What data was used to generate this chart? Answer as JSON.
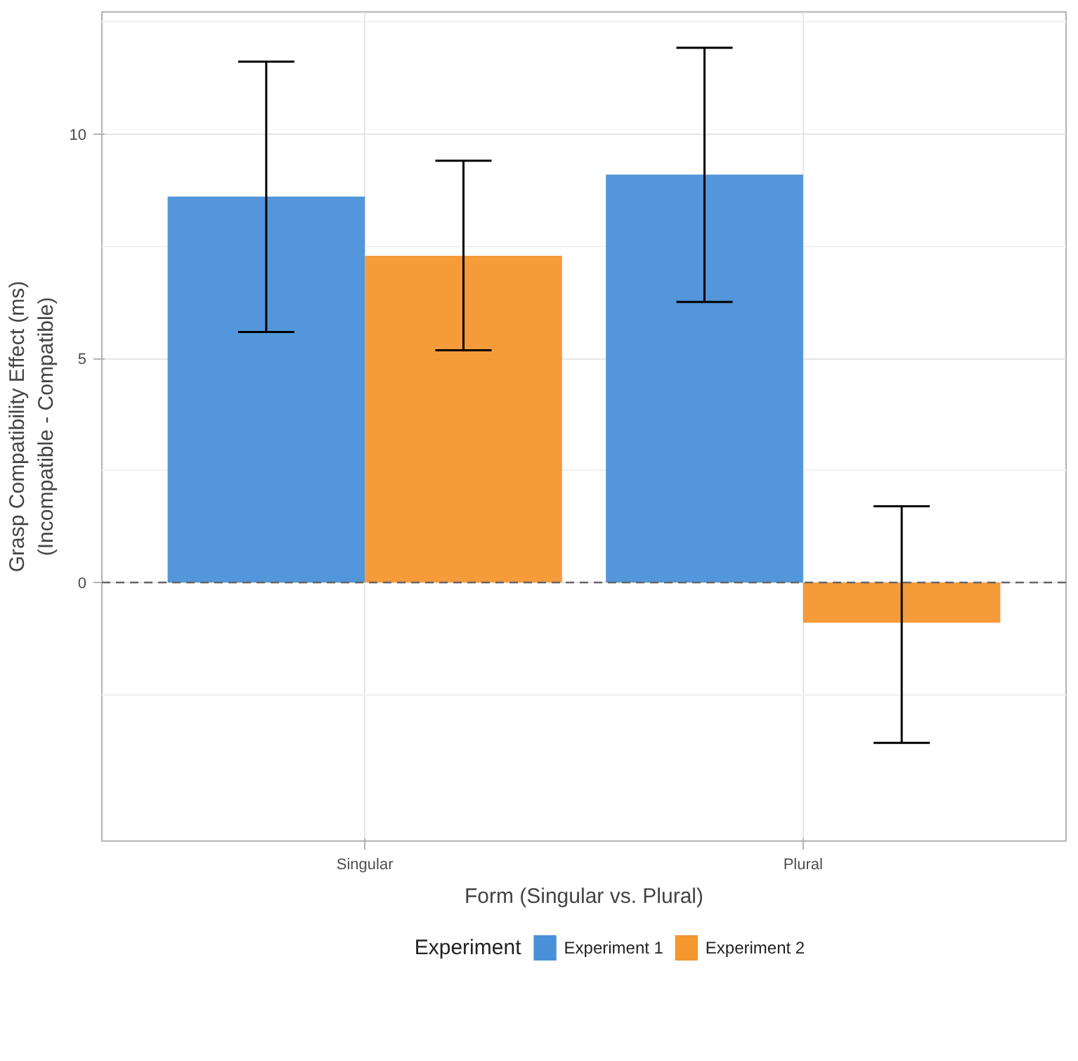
{
  "chart_data": {
    "type": "bar",
    "xlabel": "Form (Singular vs. Plural)",
    "ylabel": "Grasp Compatibility Effect (ms)\n(Incompatible - Compatible)",
    "categories": [
      "Singular",
      "Plural"
    ],
    "series": [
      {
        "name": "Experiment 1",
        "color": "#4a90d9",
        "values": [
          8.61,
          9.1
        ],
        "errors": [
          [
            5.59,
            11.62
          ],
          [
            6.26,
            11.93
          ]
        ]
      },
      {
        "name": "Experiment 2",
        "color": "#f5962e",
        "values": [
          7.29,
          -0.9
        ],
        "errors": [
          [
            5.18,
            9.41
          ],
          [
            -3.58,
            1.7
          ]
        ]
      }
    ],
    "ylim": [
      -5.77,
      12.73
    ],
    "yticks": [
      0,
      5,
      10
    ],
    "ref_lines": [
      {
        "axis": "y",
        "value": 0,
        "color": "#666666",
        "line_style": "dashed"
      }
    ],
    "legend_title": "Experiment",
    "legend": "bottom",
    "grid": true
  }
}
